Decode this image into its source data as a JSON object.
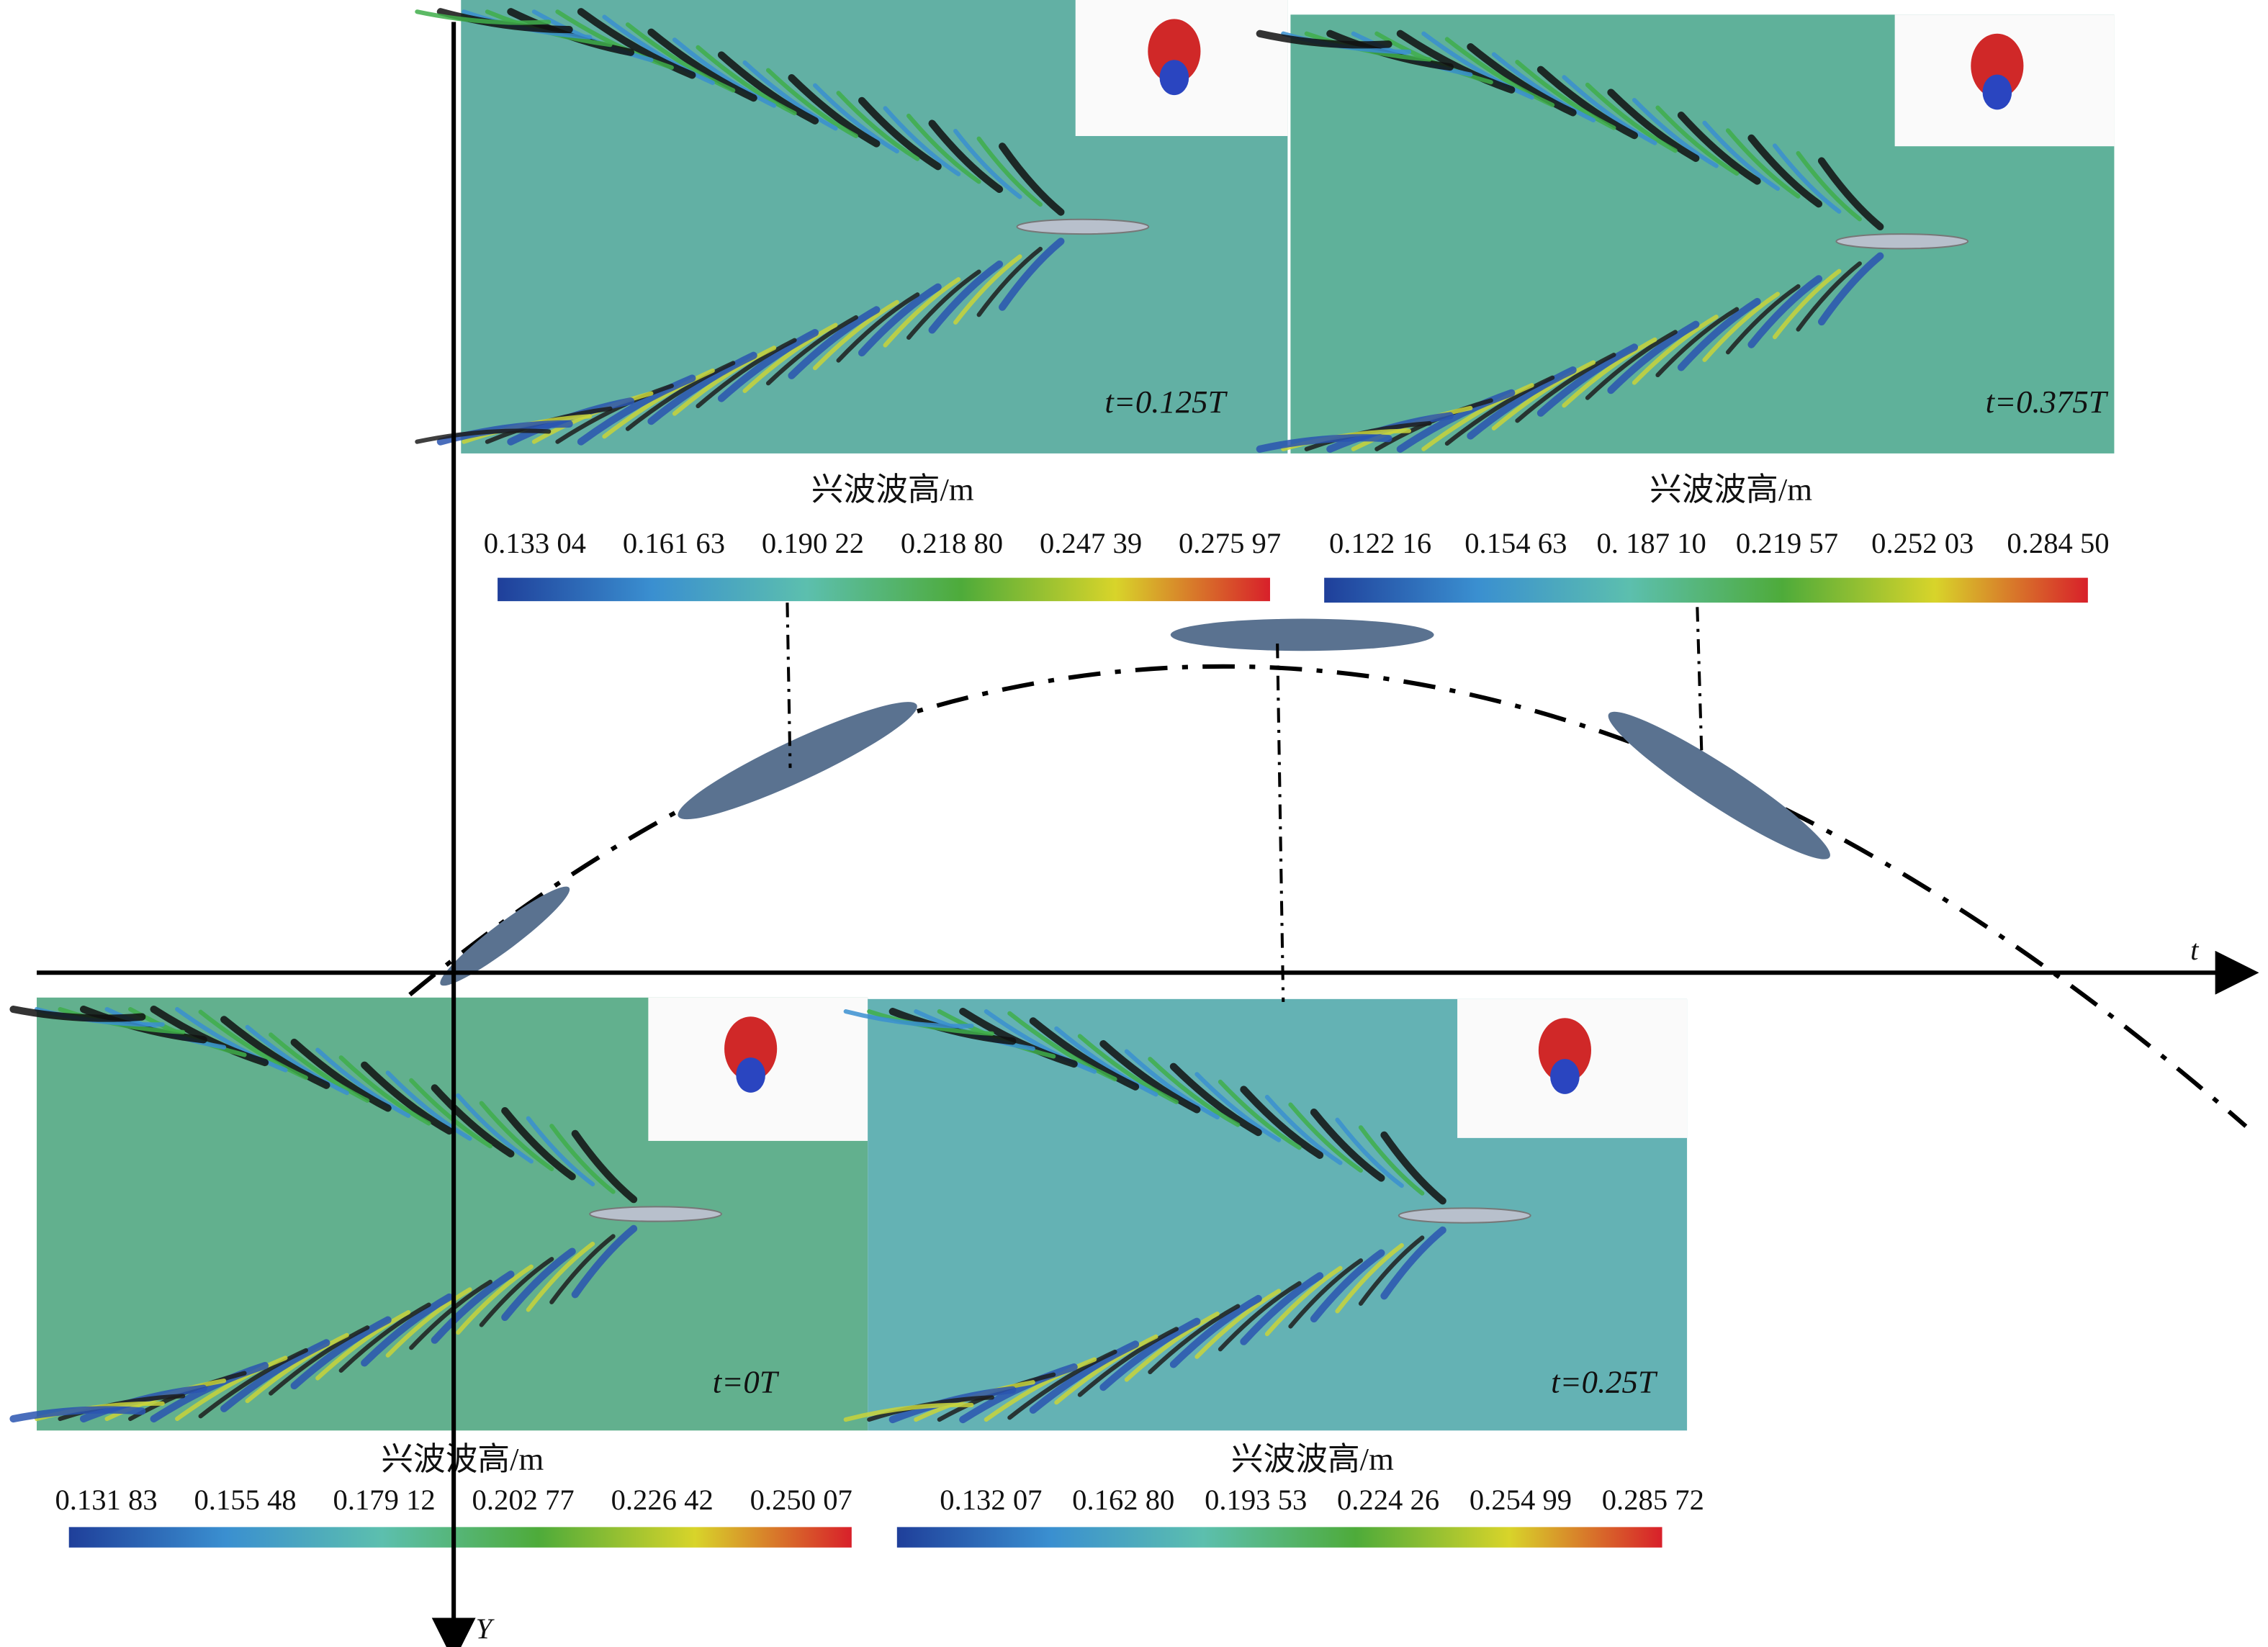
{
  "axes": {
    "x_label": "t",
    "y_label": "Y"
  },
  "panels": [
    {
      "time_label": "t=0.125T",
      "colorbar": {
        "title": "兴波波高/m",
        "ticks": [
          "0.133 04",
          "0.161 63",
          "0.190 22",
          "0.218 80",
          "0.247 39",
          "0.275 97"
        ]
      }
    },
    {
      "time_label": "t=0.375T",
      "colorbar": {
        "title": "兴波波高/m",
        "ticks": [
          "0.122 16",
          "0.154 63",
          "0. 187 10",
          "0.219 57",
          "0.252 03",
          "0.284 50"
        ]
      }
    },
    {
      "time_label": "t=0T",
      "colorbar": {
        "title": "兴波波高/m",
        "ticks": [
          "0.131 83",
          "0.155 48",
          "0.179 12",
          "0.202 77",
          "0.226 42",
          "0.250 07"
        ]
      }
    },
    {
      "time_label": "t=0.25T",
      "colorbar": {
        "title": "兴波波高/m",
        "ticks": [
          "0.132 07",
          "0.162 80",
          "0.193 53",
          "0.224 26",
          "0.254 99",
          "0.285 72"
        ]
      }
    }
  ]
}
